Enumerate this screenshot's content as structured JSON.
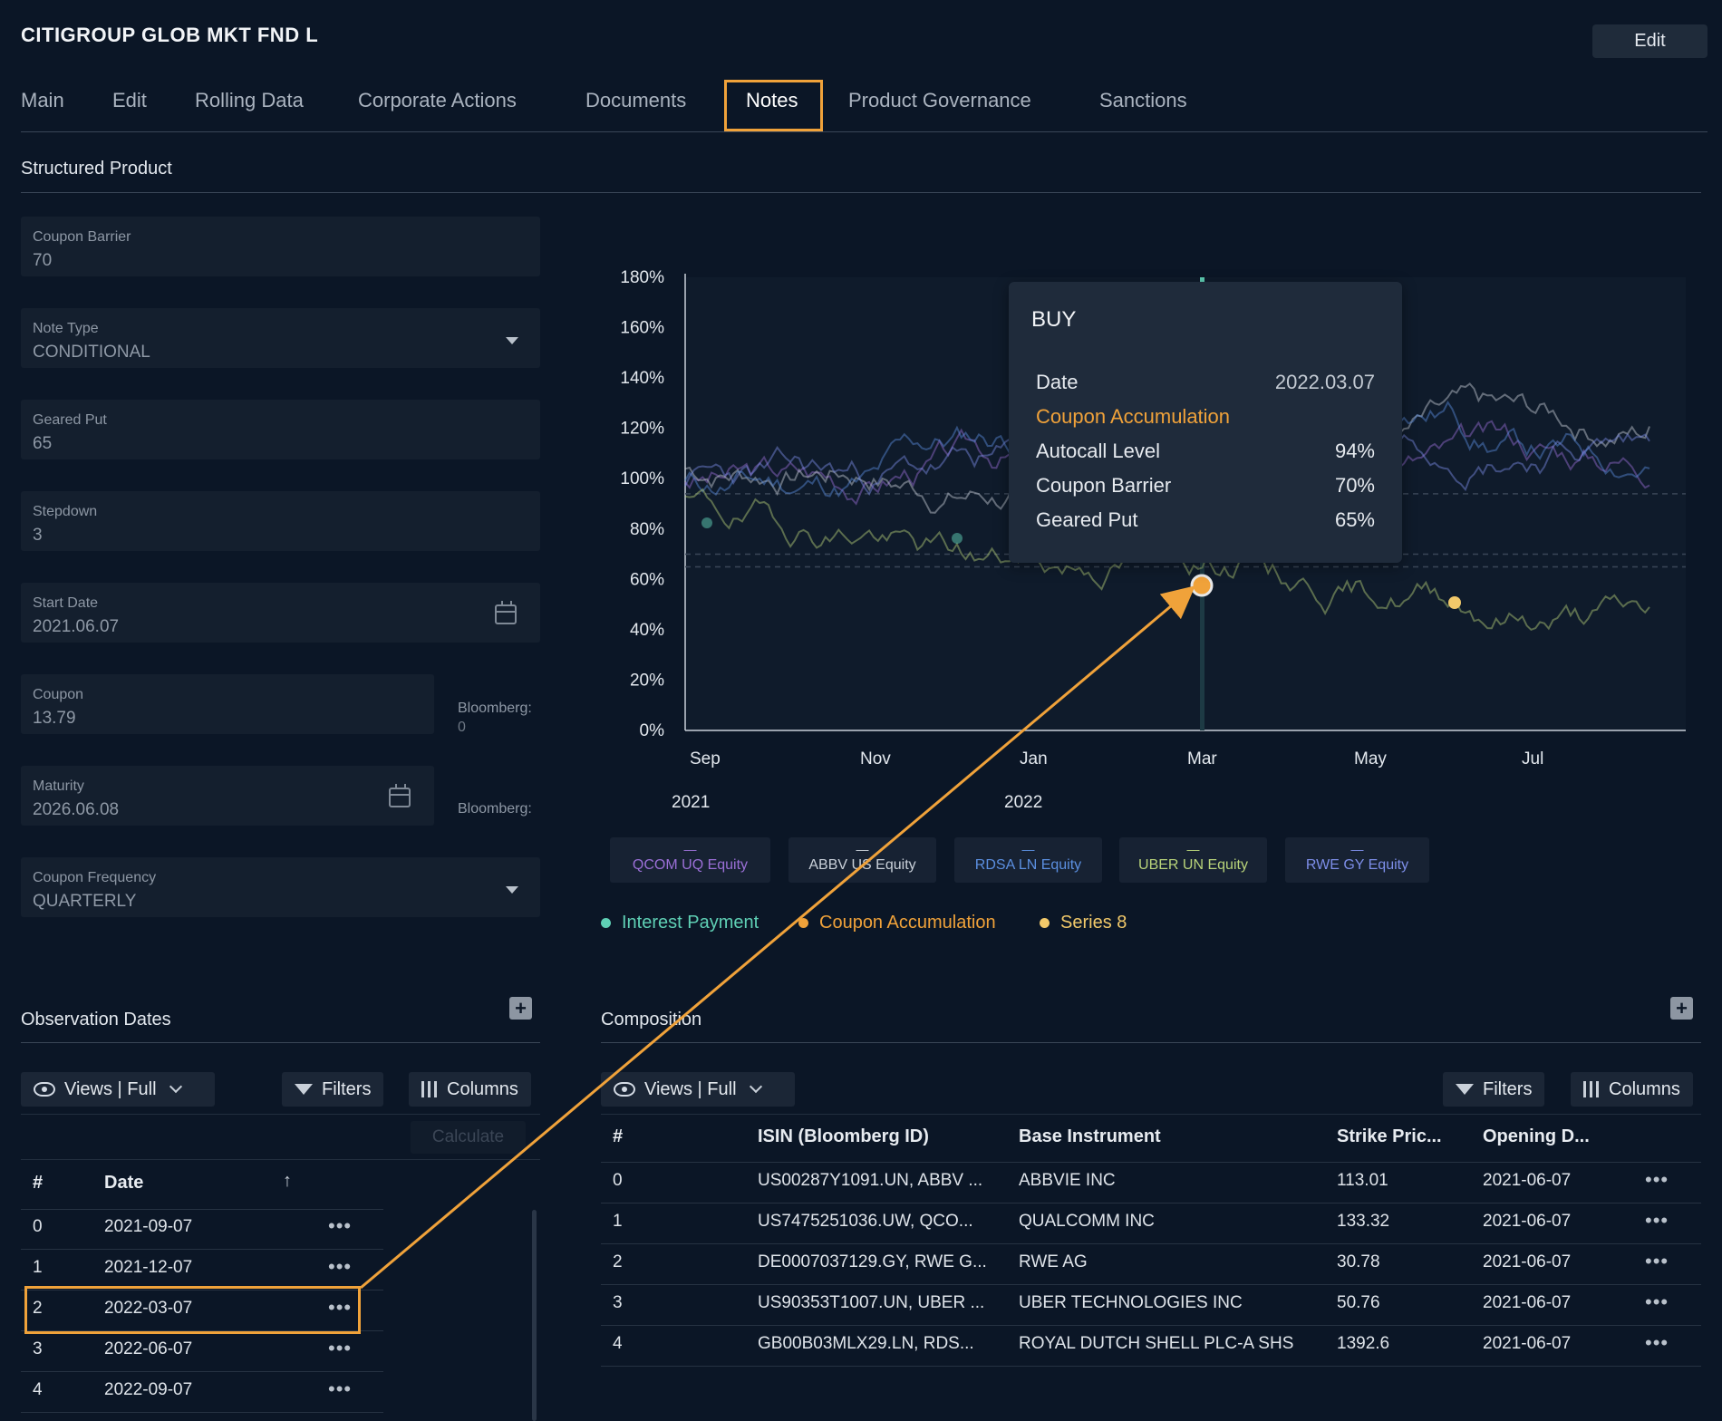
{
  "header": {
    "title": "CITIGROUP GLOB MKT FND L",
    "edit_label": "Edit"
  },
  "tabs": [
    "Main",
    "Edit",
    "Rolling Data",
    "Corporate Actions",
    "Documents",
    "Notes",
    "Product Governance",
    "Sanctions"
  ],
  "active_tab": "Notes",
  "section": {
    "title": "Structured Product"
  },
  "form": {
    "coupon_barrier": {
      "label": "Coupon Barrier",
      "value": "70"
    },
    "note_type": {
      "label": "Note Type",
      "value": "CONDITIONAL"
    },
    "geared_put": {
      "label": "Geared Put",
      "value": "65"
    },
    "stepdown": {
      "label": "Stepdown",
      "value": "3"
    },
    "start_date": {
      "label": "Start Date",
      "value": "2021.06.07"
    },
    "coupon": {
      "label": "Coupon",
      "value": "13.79",
      "bloomberg_label": "Bloomberg:",
      "bloomberg_value": "0"
    },
    "maturity": {
      "label": "Maturity",
      "value": "2026.06.08",
      "bloomberg_label": "Bloomberg:"
    },
    "coupon_frequency": {
      "label": "Coupon Frequency",
      "value": "QUARTERLY"
    }
  },
  "chart_data": {
    "type": "line",
    "y_ticks": [
      "180%",
      "160%",
      "140%",
      "120%",
      "100%",
      "80%",
      "60%",
      "40%",
      "20%",
      "0%"
    ],
    "ylim": [
      0,
      180
    ],
    "x_ticks": [
      "Sep",
      "Nov",
      "Jan",
      "Mar",
      "May",
      "Jul"
    ],
    "x_years": [
      "2021",
      "2022"
    ],
    "series": [
      {
        "name": "QCOM UQ Equity",
        "color": "#9a6fd6"
      },
      {
        "name": "ABBV US Equity",
        "color": "#c9d0d9"
      },
      {
        "name": "RDSA LN Equity",
        "color": "#5b8fe0"
      },
      {
        "name": "UBER UN Equity",
        "color": "#b8d37a"
      },
      {
        "name": "RWE GY Equity",
        "color": "#7d8ee8"
      }
    ],
    "markers": [
      {
        "name": "Interest Payment",
        "color": "#5fd0b5"
      },
      {
        "name": "Coupon Accumulation",
        "color": "#f0a23a"
      },
      {
        "name": "Series 8",
        "color": "#f2c96a"
      }
    ],
    "tooltip": {
      "title": "BUY",
      "date_label": "Date",
      "date_value": "2022.03.07",
      "event": "Coupon Accumulation",
      "rows": [
        {
          "label": "Autocall Level",
          "value": "94%"
        },
        {
          "label": "Coupon Barrier",
          "value": "70%"
        },
        {
          "label": "Geared Put",
          "value": "65%"
        }
      ]
    }
  },
  "observation": {
    "title": "Observation Dates",
    "views_label": "Views | Full",
    "filters_label": "Filters",
    "columns_label": "Columns",
    "calculate_label": "Calculate",
    "headers": [
      "#",
      "Date"
    ],
    "rows": [
      {
        "idx": "0",
        "date": "2021-09-07"
      },
      {
        "idx": "1",
        "date": "2021-12-07"
      },
      {
        "idx": "2",
        "date": "2022-03-07"
      },
      {
        "idx": "3",
        "date": "2022-06-07"
      },
      {
        "idx": "4",
        "date": "2022-09-07"
      }
    ]
  },
  "composition": {
    "title": "Composition",
    "views_label": "Views | Full",
    "filters_label": "Filters",
    "columns_label": "Columns",
    "headers": [
      "#",
      "ISIN (Bloomberg ID)",
      "Base Instrument",
      "Strike Pric...",
      "Opening D..."
    ],
    "rows": [
      {
        "idx": "0",
        "isin": "US00287Y1091.UN, ABBV ...",
        "base": "ABBVIE INC",
        "strike": "113.01",
        "opening": "2021-06-07"
      },
      {
        "idx": "1",
        "isin": "US7475251036.UW, QCO...",
        "base": "QUALCOMM INC",
        "strike": "133.32",
        "opening": "2021-06-07"
      },
      {
        "idx": "2",
        "isin": "DE0007037129.GY, RWE G...",
        "base": "RWE AG",
        "strike": "30.78",
        "opening": "2021-06-07"
      },
      {
        "idx": "3",
        "isin": "US90353T1007.UN, UBER ...",
        "base": "UBER TECHNOLOGIES INC",
        "strike": "50.76",
        "opening": "2021-06-07"
      },
      {
        "idx": "4",
        "isin": "GB00B03MLX29.LN, RDS...",
        "base": "ROYAL DUTCH SHELL PLC-A SHS",
        "strike": "1392.6",
        "opening": "2021-06-07"
      }
    ]
  }
}
